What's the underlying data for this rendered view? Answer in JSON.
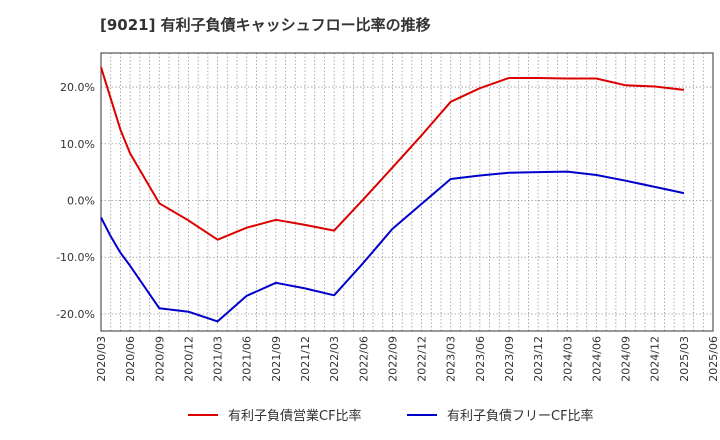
{
  "chart_data": {
    "type": "line",
    "title": "[9021]  有利子負債キャッシュフロー比率の推移",
    "xlabel": "",
    "ylabel": "",
    "ylim": [
      -23,
      26
    ],
    "yticks": [
      20,
      10,
      0,
      -10,
      -20
    ],
    "ytick_labels": [
      "20.0%",
      "10.0%",
      "0.0%",
      "-10.0%",
      "-20.0%"
    ],
    "categories": [
      "2020/03",
      "2020/04",
      "2020/05",
      "2020/06",
      "2020/07",
      "2020/08",
      "2020/09",
      "2020/10",
      "2020/11",
      "2020/12",
      "2021/01",
      "2021/02",
      "2021/03",
      "2021/04",
      "2021/05",
      "2021/06",
      "2021/07",
      "2021/08",
      "2021/09",
      "2021/10",
      "2021/11",
      "2021/12",
      "2022/01",
      "2022/02",
      "2022/03",
      "2022/04",
      "2022/05",
      "2022/06",
      "2022/07",
      "2022/08",
      "2022/09",
      "2022/10",
      "2022/11",
      "2022/12",
      "2023/01",
      "2023/02",
      "2023/03",
      "2023/04",
      "2023/05",
      "2023/06",
      "2023/07",
      "2023/08",
      "2023/09",
      "2023/10",
      "2023/11",
      "2023/12",
      "2024/01",
      "2024/02",
      "2024/03",
      "2024/04",
      "2024/05",
      "2024/06",
      "2024/07",
      "2024/08",
      "2024/09",
      "2024/10",
      "2024/11",
      "2024/12",
      "2025/01",
      "2025/02",
      "2025/03",
      "2025/04",
      "2025/05",
      "2025/06"
    ],
    "xtick_labels": [
      "2020/03",
      "2020/06",
      "2020/09",
      "2020/12",
      "2021/03",
      "2021/06",
      "2021/09",
      "2021/12",
      "2022/03",
      "2022/06",
      "2022/09",
      "2022/12",
      "2023/03",
      "2023/06",
      "2023/09",
      "2023/12",
      "2024/03",
      "2024/06",
      "2024/09",
      "2024/12",
      "2025/03",
      "2025/06"
    ],
    "series": [
      {
        "name": "有利子負債営業CF比率",
        "color": "#dd0000",
        "x": [
          "2020/03",
          "2020/04",
          "2020/05",
          "2020/06",
          "2020/09",
          "2020/12",
          "2021/03",
          "2021/06",
          "2021/09",
          "2021/12",
          "2022/03",
          "2022/06",
          "2022/09",
          "2022/12",
          "2023/03",
          "2023/06",
          "2023/09",
          "2023/12",
          "2024/03",
          "2024/06",
          "2024/09",
          "2024/12",
          "2025/03"
        ],
        "values": [
          23.5,
          18.0,
          12.5,
          8.3,
          -0.5,
          -3.5,
          -6.9,
          -4.8,
          -3.4,
          -4.3,
          -5.3,
          0.2,
          5.8,
          11.5,
          17.4,
          19.8,
          21.6,
          21.6,
          21.5,
          21.5,
          20.3,
          20.1,
          19.5
        ]
      },
      {
        "name": "有利子負債フリーCF比率",
        "color": "#0000cc",
        "x": [
          "2020/03",
          "2020/04",
          "2020/05",
          "2020/06",
          "2020/09",
          "2020/12",
          "2021/03",
          "2021/06",
          "2021/09",
          "2021/12",
          "2022/03",
          "2022/06",
          "2022/09",
          "2022/12",
          "2023/03",
          "2023/06",
          "2023/09",
          "2023/12",
          "2024/03",
          "2024/06",
          "2024/09",
          "2024/12",
          "2025/03"
        ],
        "values": [
          -3.0,
          -6.3,
          -9.2,
          -11.5,
          -19.0,
          -19.6,
          -21.3,
          -16.8,
          -14.5,
          -15.5,
          -16.7,
          -11.0,
          -5.0,
          -0.6,
          3.8,
          4.4,
          4.9,
          5.0,
          5.1,
          4.5,
          3.5,
          2.4,
          1.3
        ]
      }
    ],
    "legend": [
      "有利子負債営業CF比率",
      "有利子負債フリーCF比率"
    ],
    "legend_position": "bottom",
    "grid": true
  }
}
